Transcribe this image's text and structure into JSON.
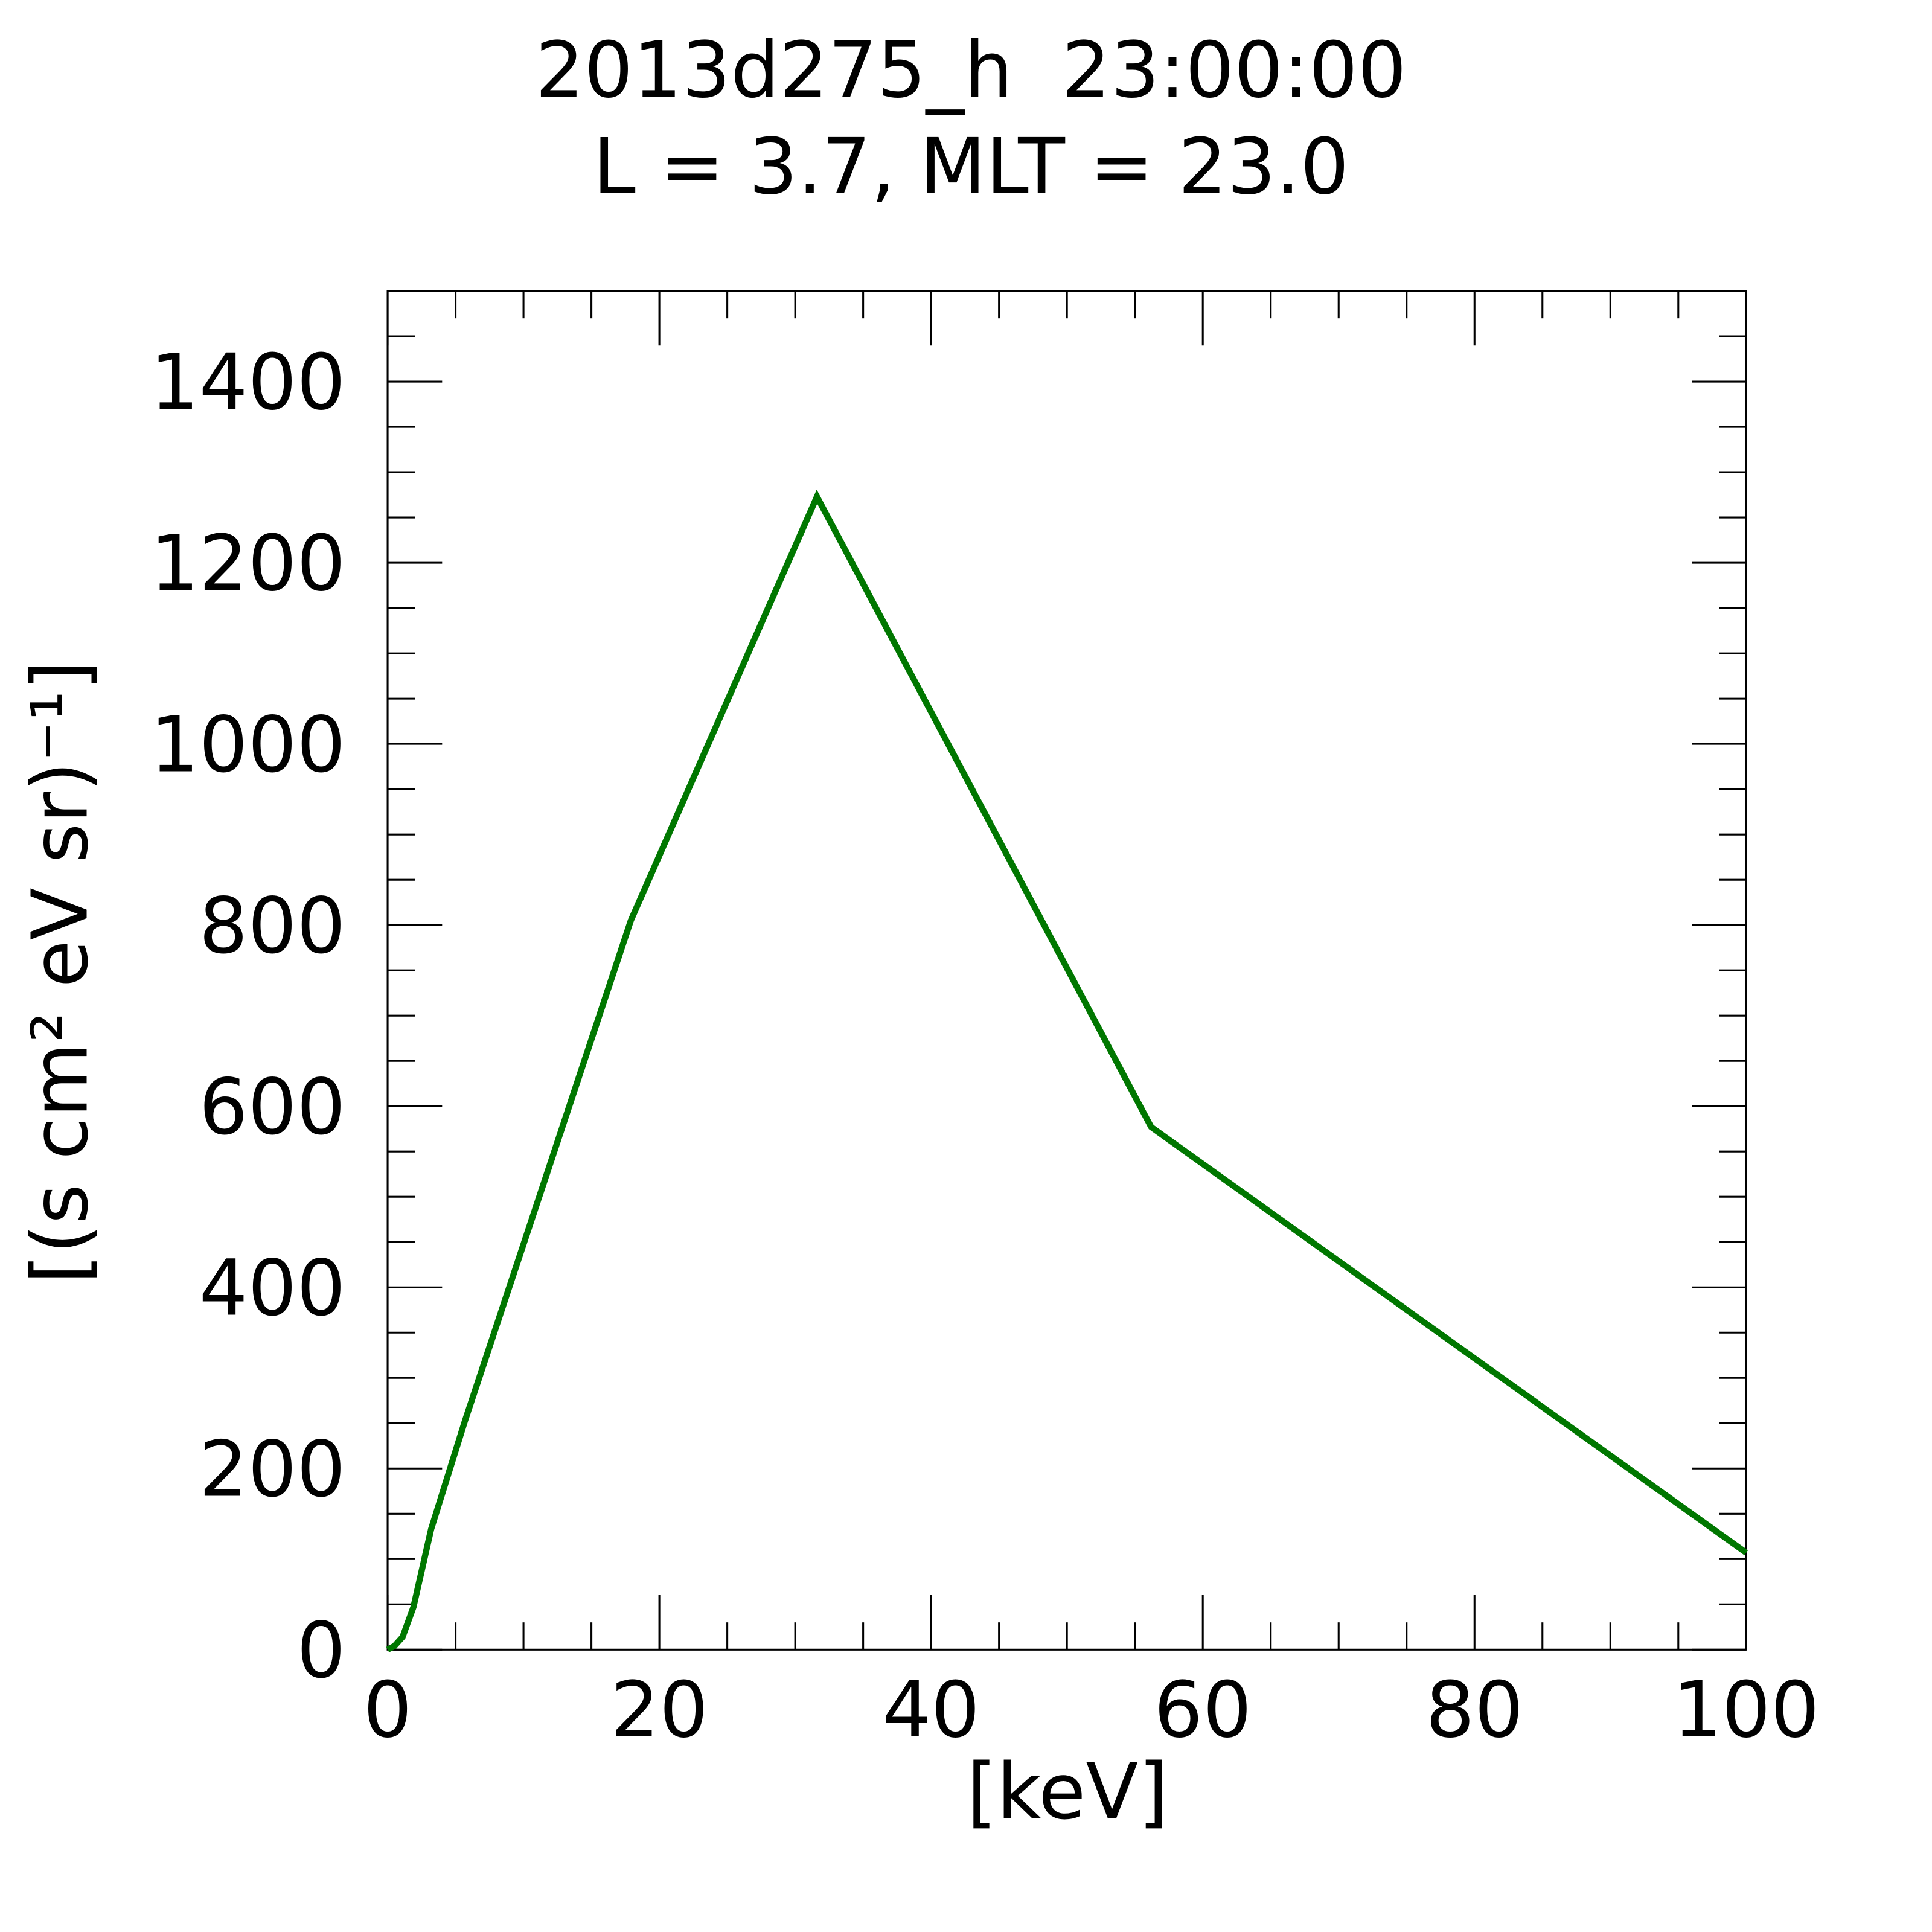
{
  "chart_data": {
    "type": "line",
    "title": [
      "2013d275_h  23:00:00",
      "L = 3.7, MLT = 23.0"
    ],
    "x_label": "[keV]",
    "y_label": "[(s cm² eV sr)⁻¹]",
    "x": [
      0,
      0.5,
      1.1,
      1.9,
      3.2,
      5.7,
      17.9,
      31.6,
      56.2,
      100
    ],
    "series": [
      {
        "name": null,
        "color": "#007700",
        "values": [
          0,
          4,
          14,
          47,
          133,
          253,
          805,
          1273,
          577,
          107
        ]
      }
    ],
    "xlim": [
      0,
      100
    ],
    "ylim": [
      0,
      1500
    ],
    "xticks": [
      0,
      20,
      40,
      60,
      80,
      100
    ],
    "yticks": [
      0,
      200,
      400,
      600,
      800,
      1000,
      1200,
      1400
    ],
    "xminorticks": [
      5,
      10,
      15,
      25,
      30,
      35,
      45,
      50,
      55,
      65,
      70,
      75,
      85,
      90,
      95
    ],
    "yminorticks": [
      50,
      100,
      150,
      250,
      300,
      350,
      450,
      500,
      550,
      650,
      700,
      750,
      850,
      900,
      950,
      1050,
      1100,
      1150,
      1250,
      1300,
      1350,
      1450
    ]
  }
}
